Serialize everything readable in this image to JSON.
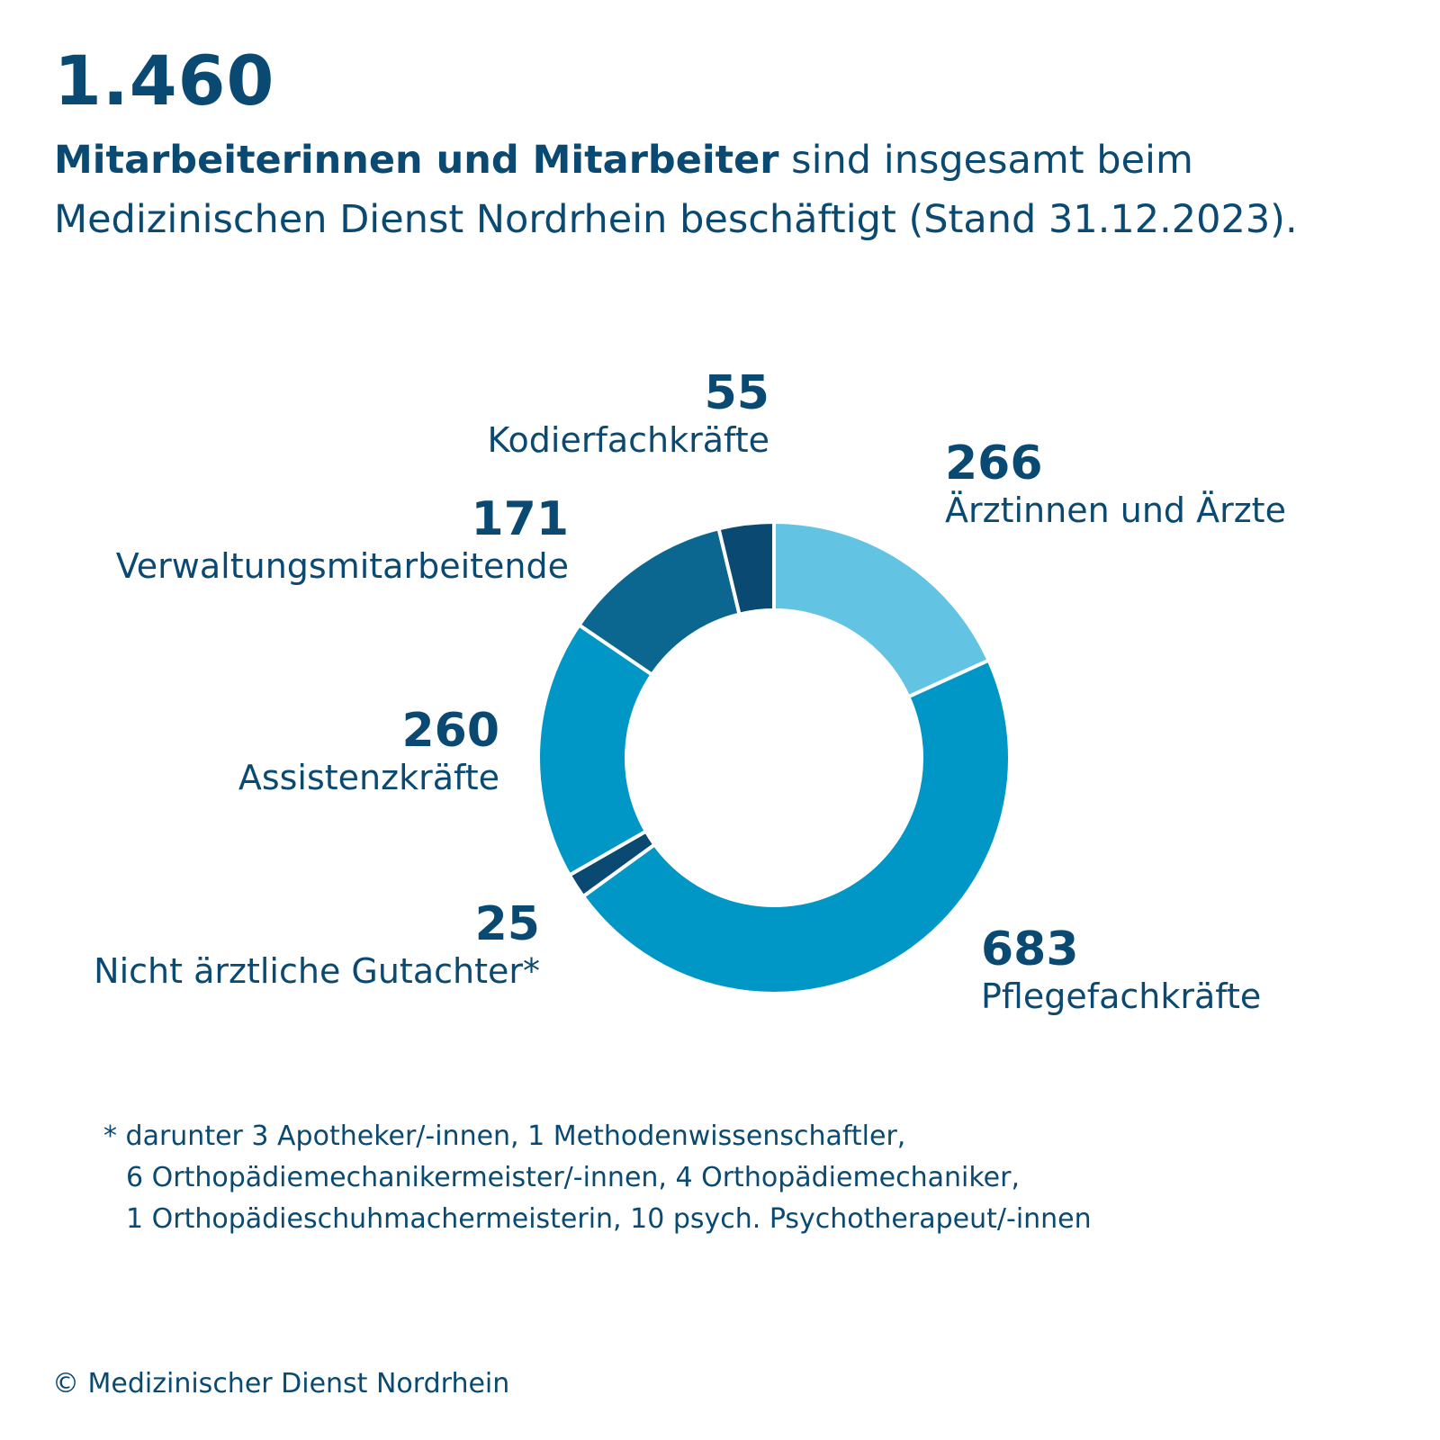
{
  "header": {
    "total": "1.460",
    "subtitle_bold": "Mitarbeiterinnen und Mitarbeiter",
    "subtitle_rest": " sind insgesamt beim Medizinischen Dienst Nordrhein beschäftigt (Stand 31.12.2023)."
  },
  "chart_data": {
    "type": "pie",
    "donut": true,
    "categories": [
      "Ärztinnen und Ärzte",
      "Pflegefachkräfte",
      "Nicht ärztliche Gutachter*",
      "Assistenzkräfte",
      "Verwaltungsmitarbeitende",
      "Kodierfachkräfte"
    ],
    "values": [
      266,
      683,
      25,
      260,
      171,
      55
    ],
    "colors": [
      "#62c3e2",
      "#0096c5",
      "#0a4a72",
      "#0096c5",
      "#0b6690",
      "#0a4a72"
    ]
  },
  "labels": [
    {
      "value": "266",
      "name": "Ärztinnen und Ärzte"
    },
    {
      "value": "683",
      "name": "Pflegefachkräfte"
    },
    {
      "value": "25",
      "name": "Nicht ärztliche Gutachter*"
    },
    {
      "value": "260",
      "name": "Assistenzkräfte"
    },
    {
      "value": "171",
      "name": "Verwaltungsmitarbeitende"
    },
    {
      "value": "55",
      "name": "Kodierfachkräfte"
    }
  ],
  "footnote": {
    "line1": "* darunter 3 Apotheker/-innen, 1 Methodenwissenschaftler,",
    "line2": "6 Orthopädiemechanikermeister/-innen, 4 Orthopädiemechaniker,",
    "line3": "1 Orthopädieschuhmachermeisterin, 10 psych. Psychotherapeut/-innen"
  },
  "copyright": "© Medizinischer Dienst Nordrhein"
}
